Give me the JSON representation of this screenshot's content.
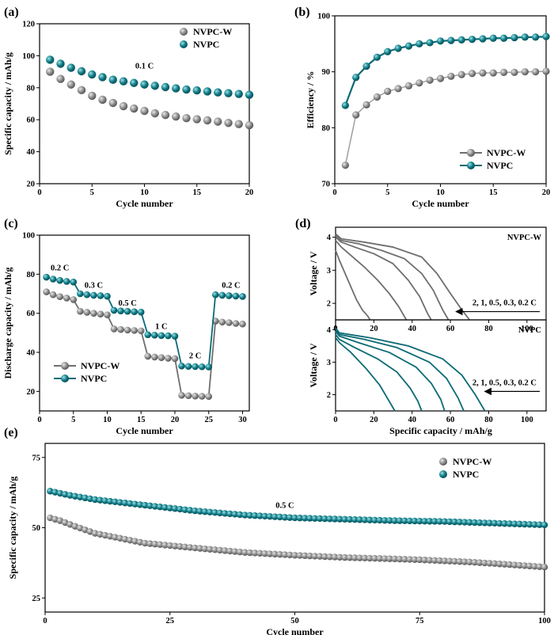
{
  "colors": {
    "nvpc_w": "#8c8c8c",
    "nvpc": "#0f7b86",
    "nvpc_w_line": "#6e6e6e",
    "nvpc_line": "#0a6a74"
  },
  "chart_data": [
    {
      "id": "a",
      "panel_label": "(a)",
      "type": "scatter",
      "xlabel": "Cycle number",
      "ylabel": "Specific capacity / mAh/g",
      "xlim": [
        0,
        20
      ],
      "ylim": [
        20,
        120
      ],
      "xticks": [
        0,
        5,
        10,
        15,
        20
      ],
      "yticks": [
        20,
        40,
        60,
        80,
        100,
        120
      ],
      "legend": "top-right",
      "annotations": [
        {
          "text": "0.1 C",
          "x": 10,
          "y": 92
        }
      ],
      "series": [
        {
          "name": "NVPC-W",
          "x": [
            1,
            2,
            3,
            4,
            5,
            6,
            7,
            8,
            9,
            10,
            11,
            12,
            13,
            14,
            15,
            16,
            17,
            18,
            19,
            20
          ],
          "values": [
            90,
            85.5,
            82,
            78.5,
            75,
            72.5,
            70.5,
            68.5,
            67,
            65.5,
            64,
            63,
            62,
            61,
            60.3,
            59.6,
            58.8,
            58,
            57.3,
            56.6
          ]
        },
        {
          "name": "NVPC",
          "x": [
            1,
            2,
            3,
            4,
            5,
            6,
            7,
            8,
            9,
            10,
            11,
            12,
            13,
            14,
            15,
            16,
            17,
            18,
            19,
            20
          ],
          "values": [
            97.5,
            95,
            92.5,
            90.3,
            88.3,
            86.6,
            85,
            84,
            83,
            82,
            81.2,
            80.4,
            79.6,
            78.9,
            78.3,
            77.7,
            77.1,
            76.6,
            76.1,
            75.6
          ]
        }
      ]
    },
    {
      "id": "b",
      "panel_label": "(b)",
      "type": "line",
      "xlabel": "Cycle number",
      "ylabel": "Efficiency / %",
      "xlim": [
        0,
        20
      ],
      "ylim": [
        70,
        100
      ],
      "xticks": [
        0,
        5,
        10,
        15,
        20
      ],
      "yticks": [
        70,
        80,
        90,
        100
      ],
      "legend": "bottom-right",
      "series": [
        {
          "name": "NVPC-W",
          "x": [
            1,
            2,
            3,
            4,
            5,
            6,
            7,
            8,
            9,
            10,
            11,
            12,
            13,
            14,
            15,
            16,
            17,
            18,
            19,
            20
          ],
          "values": [
            73.3,
            82.3,
            84.1,
            85.5,
            86.5,
            87,
            87.5,
            88,
            88.5,
            88.8,
            89.2,
            89.5,
            89.7,
            89.8,
            89.8,
            89.9,
            89.9,
            90,
            90,
            90.1
          ]
        },
        {
          "name": "NVPC",
          "x": [
            1,
            2,
            3,
            4,
            5,
            6,
            7,
            8,
            9,
            10,
            11,
            12,
            13,
            14,
            15,
            16,
            17,
            18,
            19,
            20
          ],
          "values": [
            84,
            89,
            91,
            92.6,
            93.6,
            94.2,
            94.6,
            95,
            95.2,
            95.5,
            95.6,
            95.7,
            95.8,
            95.9,
            96,
            96,
            96.1,
            96.2,
            96.2,
            96.3
          ]
        }
      ]
    },
    {
      "id": "c",
      "panel_label": "(c)",
      "type": "line",
      "xlabel": "Cycle number",
      "ylabel": "Discharge capacity / mAh/g",
      "xlim": [
        0,
        31
      ],
      "ylim": [
        10,
        100
      ],
      "xticks": [
        0,
        5,
        10,
        15,
        20,
        25,
        30
      ],
      "yticks": [
        20,
        40,
        60,
        80,
        100
      ],
      "legend": "bottom-left",
      "rate_labels": [
        {
          "text": "0.2 C",
          "x": 3,
          "y": 82
        },
        {
          "text": "0.3 C",
          "x": 8,
          "y": 73
        },
        {
          "text": "0.5 C",
          "x": 13,
          "y": 64
        },
        {
          "text": "1 C",
          "x": 18,
          "y": 52
        },
        {
          "text": "2 C",
          "x": 23,
          "y": 37
        },
        {
          "text": "0.2 C",
          "x": 28.3,
          "y": 73
        }
      ],
      "series": [
        {
          "name": "NVPC-W",
          "x": [
            1,
            2,
            3,
            4,
            5,
            6,
            7,
            8,
            9,
            10,
            11,
            12,
            13,
            14,
            15,
            16,
            17,
            18,
            19,
            20,
            21,
            22,
            23,
            24,
            25,
            26,
            27,
            28,
            29,
            30
          ],
          "values": [
            71,
            69.5,
            68.5,
            67.8,
            67,
            61,
            60.5,
            60,
            59.6,
            59.2,
            52,
            51.7,
            51.4,
            51.2,
            51,
            38,
            37.6,
            37.3,
            37,
            36.8,
            18,
            17.8,
            17.6,
            17.5,
            17.4,
            56,
            55.5,
            55.2,
            54.8,
            54.5
          ]
        },
        {
          "name": "NVPC",
          "x": [
            1,
            2,
            3,
            4,
            5,
            6,
            7,
            8,
            9,
            10,
            11,
            12,
            13,
            14,
            15,
            16,
            17,
            18,
            19,
            20,
            21,
            22,
            23,
            24,
            25,
            26,
            27,
            28,
            29,
            30
          ],
          "values": [
            78.5,
            77.5,
            76.8,
            76.3,
            76,
            70,
            69.5,
            69.2,
            69,
            68.7,
            61.5,
            61.2,
            61,
            60.8,
            60.6,
            49,
            48.8,
            48.6,
            48.5,
            48.3,
            33,
            32.8,
            32.7,
            32.6,
            32.5,
            69.5,
            69.2,
            69,
            68.8,
            68.6
          ]
        }
      ]
    },
    {
      "id": "d-top",
      "panel_label": "(d)",
      "type": "line",
      "panel_title": "NVPC-W",
      "ylabel": "Voltage / V",
      "xlim": [
        0,
        110
      ],
      "ylim": [
        1.5,
        4.3
      ],
      "xticks": [
        0,
        20,
        40,
        60,
        80,
        100
      ],
      "yticks": [
        2,
        3,
        4
      ],
      "arrow_label": "2, 1, 0.5, 0.3, 0.2 C",
      "series": [
        {
          "rate": "2 C",
          "x": [
            0,
            2,
            5,
            8,
            11,
            14,
            17,
            18
          ],
          "values": [
            3.6,
            3.3,
            2.9,
            2.5,
            2.1,
            1.8,
            1.6,
            1.5
          ]
        },
        {
          "rate": "1 C",
          "x": [
            0,
            3,
            8,
            15,
            22,
            28,
            33,
            36,
            37
          ],
          "values": [
            3.9,
            3.7,
            3.45,
            3.1,
            2.7,
            2.3,
            1.9,
            1.6,
            1.5
          ]
        },
        {
          "rate": "0.5 C",
          "x": [
            0,
            3,
            10,
            20,
            30,
            38,
            44,
            48,
            50
          ],
          "values": [
            4.0,
            3.85,
            3.7,
            3.5,
            3.2,
            2.7,
            2.2,
            1.7,
            1.5
          ]
        },
        {
          "rate": "0.3 C",
          "x": [
            0,
            3,
            12,
            24,
            36,
            45,
            51,
            56,
            59
          ],
          "values": [
            4.05,
            3.9,
            3.8,
            3.6,
            3.35,
            2.9,
            2.4,
            1.8,
            1.5
          ]
        },
        {
          "rate": "0.2 C",
          "x": [
            0,
            3,
            15,
            30,
            45,
            53,
            60,
            66,
            70
          ],
          "values": [
            4.1,
            3.95,
            3.85,
            3.7,
            3.4,
            2.9,
            2.3,
            1.8,
            1.5
          ]
        }
      ]
    },
    {
      "id": "d-bottom",
      "type": "line",
      "panel_title": "NVPC",
      "xlabel": "Specific capacity / mAh/g",
      "ylabel": "Voltage / V",
      "xlim": [
        0,
        110
      ],
      "ylim": [
        1.5,
        4.3
      ],
      "xticks": [
        0,
        20,
        40,
        60,
        80,
        100
      ],
      "yticks": [
        2,
        3,
        4
      ],
      "arrow_label": "2, 1, 0.5, 0.3, 0.2 C",
      "series": [
        {
          "rate": "2 C",
          "x": [
            0,
            2,
            8,
            16,
            23,
            28,
            31
          ],
          "values": [
            3.75,
            3.6,
            3.3,
            2.8,
            2.3,
            1.8,
            1.5
          ]
        },
        {
          "rate": "1 C",
          "x": [
            0,
            2,
            10,
            22,
            32,
            39,
            43,
            45
          ],
          "values": [
            3.85,
            3.7,
            3.45,
            3.1,
            2.7,
            2.2,
            1.8,
            1.5
          ]
        },
        {
          "rate": "0.5 C",
          "x": [
            0,
            2,
            12,
            28,
            42,
            50,
            55,
            57
          ],
          "values": [
            3.95,
            3.8,
            3.6,
            3.3,
            2.85,
            2.35,
            1.85,
            1.5
          ]
        },
        {
          "rate": "0.3 C",
          "x": [
            0,
            2,
            15,
            32,
            49,
            58,
            64,
            67
          ],
          "values": [
            4.0,
            3.85,
            3.7,
            3.45,
            3.0,
            2.5,
            1.9,
            1.5
          ]
        },
        {
          "rate": "0.2 C",
          "x": [
            0,
            2,
            18,
            38,
            56,
            66,
            73,
            78
          ],
          "values": [
            4.05,
            3.9,
            3.75,
            3.5,
            3.1,
            2.6,
            2.0,
            1.5
          ]
        }
      ]
    },
    {
      "id": "e",
      "panel_label": "(e)",
      "type": "scatter",
      "xlabel": "Cycle number",
      "ylabel": "Specific capacity / mAh/g",
      "xlim": [
        0,
        100
      ],
      "ylim": [
        20,
        80
      ],
      "xticks": [
        0,
        25,
        50,
        75,
        100
      ],
      "yticks": [
        25,
        50,
        75
      ],
      "legend": "top-right",
      "annotations": [
        {
          "text": "0.5 C",
          "x": 48,
          "y": 57
        }
      ],
      "series": [
        {
          "name": "NVPC-W",
          "x_start": 1,
          "x_end": 100,
          "keypoints": [
            [
              1,
              53.5
            ],
            [
              3,
              52.5
            ],
            [
              6,
              50.5
            ],
            [
              10,
              48
            ],
            [
              20,
              44.5
            ],
            [
              30,
              42.8
            ],
            [
              40,
              41.2
            ],
            [
              50,
              40.2
            ],
            [
              60,
              39.4
            ],
            [
              68,
              39
            ],
            [
              75,
              38.6
            ],
            [
              85,
              37.8
            ],
            [
              92,
              37
            ],
            [
              100,
              36
            ]
          ]
        },
        {
          "name": "NVPC",
          "x_start": 1,
          "x_end": 100,
          "keypoints": [
            [
              1,
              63
            ],
            [
              5,
              61.5
            ],
            [
              10,
              60
            ],
            [
              20,
              58
            ],
            [
              30,
              56
            ],
            [
              40,
              54.5
            ],
            [
              50,
              53.5
            ],
            [
              60,
              53
            ],
            [
              70,
              52.5
            ],
            [
              80,
              52.2
            ],
            [
              90,
              51.6
            ],
            [
              100,
              51
            ]
          ]
        }
      ]
    }
  ]
}
